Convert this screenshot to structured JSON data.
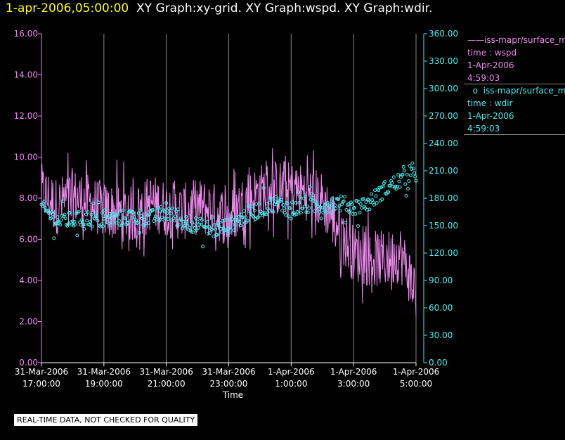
{
  "header": {
    "timestamp": "1-apr-2006,05:00:00",
    "graphs": "XY Graph:xy-grid.  XY Graph:wspd.  XY Graph:wdir."
  },
  "legend": {
    "series1": {
      "name": "iss-mapr/surface_m",
      "var": "time : wspd",
      "date": "1-Apr-2006",
      "time": "4:59:03",
      "color": "#ee88ee"
    },
    "series2": {
      "name": "iss-mapr/surface_m",
      "var": "time : wdir",
      "date": "1-Apr-2006",
      "time": "4:59:03",
      "color": "#44eeee"
    }
  },
  "disclaimer": "REAL-TIME DATA, NOT CHECKED FOR QUALITY",
  "chart_data": {
    "type": "line",
    "xlabel": "Time",
    "x_ticks": [
      [
        "31-Mar-2006",
        "17:00:00"
      ],
      [
        "31-Mar-2006",
        "19:00:00"
      ],
      [
        "31-Mar-2006",
        "21:00:00"
      ],
      [
        "31-Mar-2006",
        "23:00:00"
      ],
      [
        "1-Apr-2006",
        "1:00:00"
      ],
      [
        "1-Apr-2006",
        "3:00:00"
      ],
      [
        "1-Apr-2006",
        "5:00:00"
      ]
    ],
    "xlim": [
      "2006-03-31 17:00:00",
      "2006-04-01 05:00:00"
    ],
    "y_left": {
      "ticks": [
        "0.00",
        "2.00",
        "4.00",
        "6.00",
        "8.00",
        "10.00",
        "12.00",
        "14.00",
        "16.00"
      ],
      "ylim": [
        0,
        16
      ]
    },
    "y_right": {
      "ticks": [
        "0.00",
        "30.00",
        "60.00",
        "90.00",
        "120.00",
        "150.00",
        "180.00",
        "210.00",
        "240.00",
        "270.00",
        "300.00",
        "330.00",
        "360.00"
      ],
      "ylim": [
        0,
        360
      ]
    },
    "grid": "vertical lines at each x tick",
    "series": [
      {
        "var": "wspd",
        "style": "line",
        "axis": "left",
        "color": "#ee88ee",
        "x": [
          "2006-03-31 17:00",
          "2006-03-31 17:30",
          "2006-03-31 18:00",
          "2006-03-31 18:30",
          "2006-03-31 19:00",
          "2006-03-31 19:30",
          "2006-03-31 20:00",
          "2006-03-31 20:30",
          "2006-03-31 21:00",
          "2006-03-31 21:30",
          "2006-03-31 22:00",
          "2006-03-31 22:30",
          "2006-03-31 23:00",
          "2006-03-31 23:30",
          "2006-04-01 00:00",
          "2006-04-01 00:30",
          "2006-04-01 01:00",
          "2006-04-01 01:30",
          "2006-04-01 02:00",
          "2006-04-01 02:30",
          "2006-04-01 03:00",
          "2006-04-01 03:30",
          "2006-04-01 04:00",
          "2006-04-01 04:30",
          "2006-04-01 05:00"
        ],
        "values": [
          8.3,
          7.6,
          8.1,
          7.8,
          7.4,
          7.3,
          7.2,
          7.8,
          7.5,
          7.3,
          7.6,
          7.4,
          7.0,
          7.8,
          8.3,
          8.5,
          8.4,
          8.3,
          7.9,
          6.6,
          5.3,
          5.1,
          5.0,
          5.3,
          3.5
        ]
      },
      {
        "var": "wdir",
        "style": "circles",
        "axis": "right",
        "color": "#44eeee",
        "x": [
          "2006-03-31 17:00",
          "2006-03-31 17:30",
          "2006-03-31 18:00",
          "2006-03-31 18:30",
          "2006-03-31 19:00",
          "2006-03-31 19:30",
          "2006-03-31 20:00",
          "2006-03-31 20:30",
          "2006-03-31 21:00",
          "2006-03-31 21:30",
          "2006-03-31 22:00",
          "2006-03-31 22:30",
          "2006-03-31 23:00",
          "2006-03-31 23:30",
          "2006-04-01 00:00",
          "2006-04-01 00:30",
          "2006-04-01 01:00",
          "2006-04-01 01:30",
          "2006-04-01 02:00",
          "2006-04-01 02:30",
          "2006-04-01 03:00",
          "2006-04-01 03:30",
          "2006-04-01 04:00",
          "2006-04-01 04:30",
          "2006-04-01 05:00"
        ],
        "values": [
          170,
          155,
          156,
          158,
          155,
          158,
          160,
          158,
          165,
          155,
          150,
          145,
          150,
          160,
          168,
          175,
          168,
          172,
          172,
          175,
          170,
          175,
          190,
          200,
          205
        ]
      }
    ]
  }
}
